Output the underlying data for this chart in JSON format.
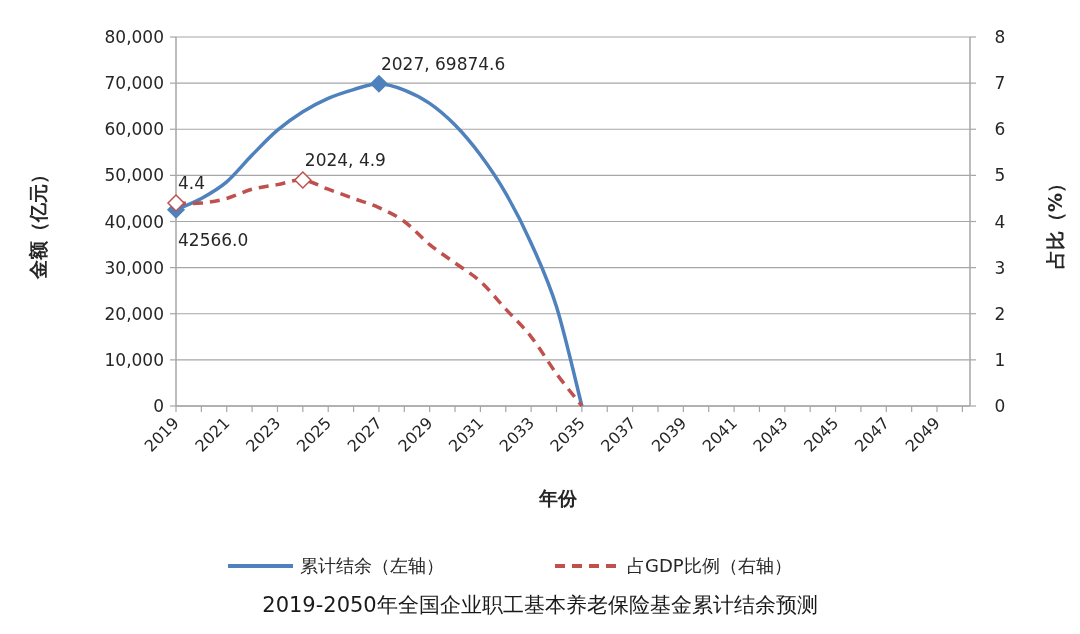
{
  "chart_data": {
    "type": "line",
    "title": "2019-2050年全国企业职工基本养老保险基金累计结余预测",
    "xlabel": "年份",
    "ylabel": "金额（亿元）",
    "y2label": "占比（%）",
    "categories": [
      "2019",
      null,
      "2021",
      null,
      "2023",
      null,
      "2025",
      null,
      "2027",
      null,
      "2029",
      null,
      "2031",
      null,
      "2033",
      null,
      "2035",
      null,
      "2037",
      null,
      "2039",
      null,
      "2041",
      null,
      "2043",
      null,
      "2045",
      null,
      "2047",
      null,
      "2049",
      null
    ],
    "series": [
      {
        "name": "累计结余（左轴）",
        "color": "#4f81bd",
        "line_style": "solid",
        "values": [
          42566.0,
          45000,
          48600,
          54400,
          59800,
          63800,
          66700,
          68600,
          69874.6,
          68500,
          65600,
          60900,
          54400,
          46100,
          35300,
          21500,
          0,
          null,
          null,
          null,
          null,
          null,
          null,
          null,
          null,
          null,
          null,
          null,
          null,
          null,
          null,
          null
        ],
        "value_labels": [
          "42566.0",
          null,
          null,
          null,
          null,
          null,
          null,
          null,
          "2027, 69874.6",
          null,
          null,
          null,
          null,
          null,
          null,
          null,
          null,
          null,
          null,
          null,
          null,
          null,
          null,
          null,
          null,
          null,
          null,
          null,
          null,
          null,
          null,
          null
        ]
      },
      {
        "name": "占GDP比例（右轴）",
        "color": "#c0504d",
        "line_style": "dashed",
        "axis": "y2",
        "values": [
          4.4,
          4.4,
          4.5,
          4.7,
          4.8,
          4.9,
          4.7,
          4.5,
          4.3,
          4.0,
          3.5,
          3.1,
          2.7,
          2.1,
          1.5,
          0.7,
          0,
          null,
          null,
          null,
          null,
          null,
          null,
          null,
          null,
          null,
          null,
          null,
          null,
          null,
          null,
          null
        ],
        "value_labels": [
          "4.4",
          null,
          null,
          null,
          null,
          "2024, 4.9",
          null,
          null,
          null,
          null,
          null,
          null,
          null,
          null,
          null,
          null,
          null,
          null,
          null,
          null,
          null,
          null,
          null,
          null,
          null,
          null,
          null,
          null,
          null,
          null,
          null,
          null
        ]
      }
    ],
    "ylim": [
      0,
      80000
    ],
    "yticks": [
      {
        "value": 0,
        "label": "0"
      },
      {
        "value": 10000,
        "label": "10,000"
      },
      {
        "value": 20000,
        "label": "20,000"
      },
      {
        "value": 30000,
        "label": "30,000"
      },
      {
        "value": 40000,
        "label": "40,000"
      },
      {
        "value": 50000,
        "label": "50,000"
      },
      {
        "value": 60000,
        "label": "60,000"
      },
      {
        "value": 70000,
        "label": "70,000"
      },
      {
        "value": 80000,
        "label": "80,000"
      }
    ],
    "y2lim": [
      0,
      8
    ],
    "y2ticks": [
      0,
      1,
      2,
      3,
      4,
      5,
      6,
      7,
      8
    ],
    "grid": "y",
    "legend": "bottom"
  }
}
